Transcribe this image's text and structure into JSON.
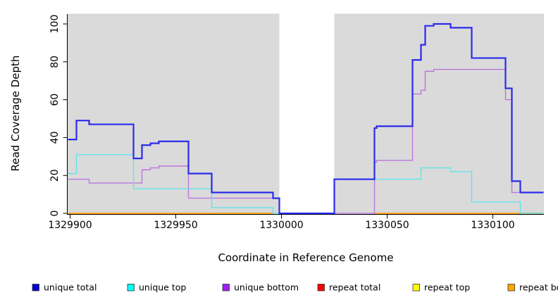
{
  "figure": {
    "x_axis_title": "Coordinate in Reference Genome",
    "y_axis_title": "Read Coverage Depth"
  },
  "chart_data": {
    "type": "line",
    "subtype": "step-coverage-plot",
    "title": "",
    "xlabel": "Coordinate in Reference Genome",
    "ylabel": "Read Coverage Depth",
    "x_domain": [
      1329899,
      1330124
    ],
    "ylim": [
      0,
      100
    ],
    "x_ticks": [
      1329900,
      1329950,
      1330000,
      1330050,
      1330100
    ],
    "y_ticks": [
      0,
      20,
      40,
      60,
      80,
      100
    ],
    "grid": "off",
    "legend_position": "bottom",
    "panel_bg": "#dadada",
    "panel_border": "#c8c8c8",
    "masked_region": {
      "start": 1329999,
      "end": 1330025,
      "color": "#ffffff"
    },
    "axis_color": "#000000",
    "draw_order": [
      3,
      4,
      5,
      2,
      1,
      0
    ],
    "series": [
      {
        "name": "unique total",
        "legend_color": "#0000cd",
        "line_color": "#2b2bea",
        "line_width": 2.2,
        "end": 1330124,
        "steps": [
          [
            1329899,
            39
          ],
          [
            1329903,
            49
          ],
          [
            1329909,
            47
          ],
          [
            1329930,
            29
          ],
          [
            1329934,
            36
          ],
          [
            1329938,
            37
          ],
          [
            1329942,
            38
          ],
          [
            1329956,
            21
          ],
          [
            1329967,
            11
          ],
          [
            1329996,
            8
          ],
          [
            1329999,
            0
          ],
          [
            1330025,
            18
          ],
          [
            1330044,
            45
          ],
          [
            1330045,
            46
          ],
          [
            1330062,
            81
          ],
          [
            1330066,
            89
          ],
          [
            1330068,
            99
          ],
          [
            1330072,
            100
          ],
          [
            1330080,
            98
          ],
          [
            1330090,
            82
          ],
          [
            1330106,
            66
          ],
          [
            1330109,
            17
          ],
          [
            1330113,
            11
          ]
        ]
      },
      {
        "name": "unique top",
        "legend_color": "#00ffff",
        "line_color": "#63e2e8",
        "line_width": 1.4,
        "end": 1330124,
        "steps": [
          [
            1329899,
            21
          ],
          [
            1329903,
            31
          ],
          [
            1329930,
            13
          ],
          [
            1329967,
            3
          ],
          [
            1329996,
            0
          ],
          [
            1330025,
            18
          ],
          [
            1330066,
            24
          ],
          [
            1330080,
            22
          ],
          [
            1330090,
            6
          ],
          [
            1330113,
            0
          ]
        ]
      },
      {
        "name": "unique bottom",
        "legend_color": "#a020f0",
        "line_color": "#bb77dd",
        "line_width": 1.4,
        "end": 1330124,
        "steps": [
          [
            1329899,
            18
          ],
          [
            1329909,
            16
          ],
          [
            1329934,
            23
          ],
          [
            1329938,
            24
          ],
          [
            1329942,
            25
          ],
          [
            1329956,
            8
          ],
          [
            1329999,
            0
          ],
          [
            1330044,
            27
          ],
          [
            1330045,
            28
          ],
          [
            1330062,
            63
          ],
          [
            1330066,
            65
          ],
          [
            1330068,
            75
          ],
          [
            1330072,
            76
          ],
          [
            1330106,
            60
          ],
          [
            1330109,
            11
          ]
        ]
      },
      {
        "name": "repeat total",
        "legend_color": "#ff0000",
        "line_color": "#e02020",
        "line_width": 1.4,
        "value": 0,
        "zero_segments": [
          [
            1329899,
            1329996
          ],
          [
            1330044,
            1330124
          ]
        ]
      },
      {
        "name": "repeat top",
        "legend_color": "#ffff00",
        "line_color": "#f2e21a",
        "line_width": 1.4,
        "value": 0,
        "zero_segments": [
          [
            1329899,
            1329996
          ],
          [
            1330044,
            1330124
          ]
        ]
      },
      {
        "name": "repeat bottom",
        "legend_color": "#ffa500",
        "line_color": "#ffa520",
        "line_width": 2,
        "value": 0,
        "zero_segments": [
          [
            1329899,
            1329996
          ],
          [
            1330044,
            1330124
          ]
        ]
      }
    ]
  }
}
